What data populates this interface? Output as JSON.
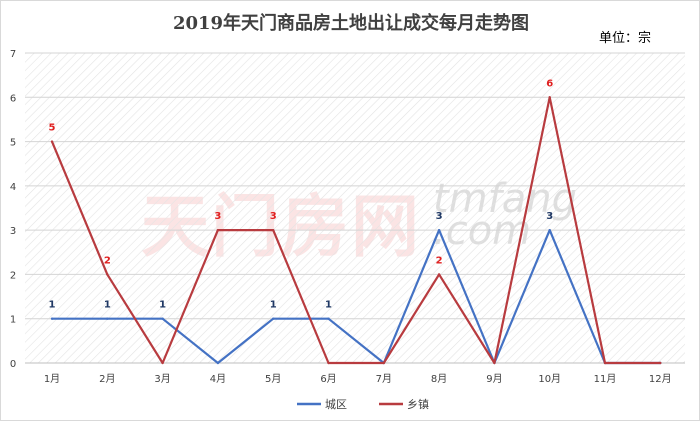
{
  "chart_data": {
    "type": "line",
    "title": "2019年天门商品房土地出让成交每月走势图",
    "unit_label": "单位：宗",
    "categories": [
      "1月",
      "2月",
      "3月",
      "4月",
      "5月",
      "6月",
      "7月",
      "8月",
      "9月",
      "10月",
      "11月",
      "12月"
    ],
    "ylim": [
      0,
      7
    ],
    "yticks": [
      0,
      1,
      2,
      3,
      4,
      5,
      6,
      7
    ],
    "grid": true,
    "legend_position": "bottom",
    "series": [
      {
        "name": "城区",
        "color": "#4472c4",
        "label_color": "#1f3864",
        "values": [
          1,
          1,
          1,
          0,
          1,
          1,
          0,
          3,
          0,
          3,
          0,
          0
        ],
        "data_labels": [
          "1",
          "1",
          "1",
          "",
          "1",
          "1",
          "",
          "3",
          "",
          "3",
          "",
          ""
        ]
      },
      {
        "name": "乡镇",
        "color": "#b83b3f",
        "label_color": "#e02020",
        "values": [
          5,
          2,
          0,
          3,
          3,
          0,
          0,
          2,
          0,
          6,
          0,
          0
        ],
        "data_labels": [
          "5",
          "2",
          "",
          "3",
          "3",
          "",
          "",
          "2",
          "",
          "6",
          "",
          ""
        ]
      }
    ]
  },
  "watermark": {
    "cn": "天门房网",
    "en_top": "tmfang",
    "en_bottom": ".com"
  }
}
